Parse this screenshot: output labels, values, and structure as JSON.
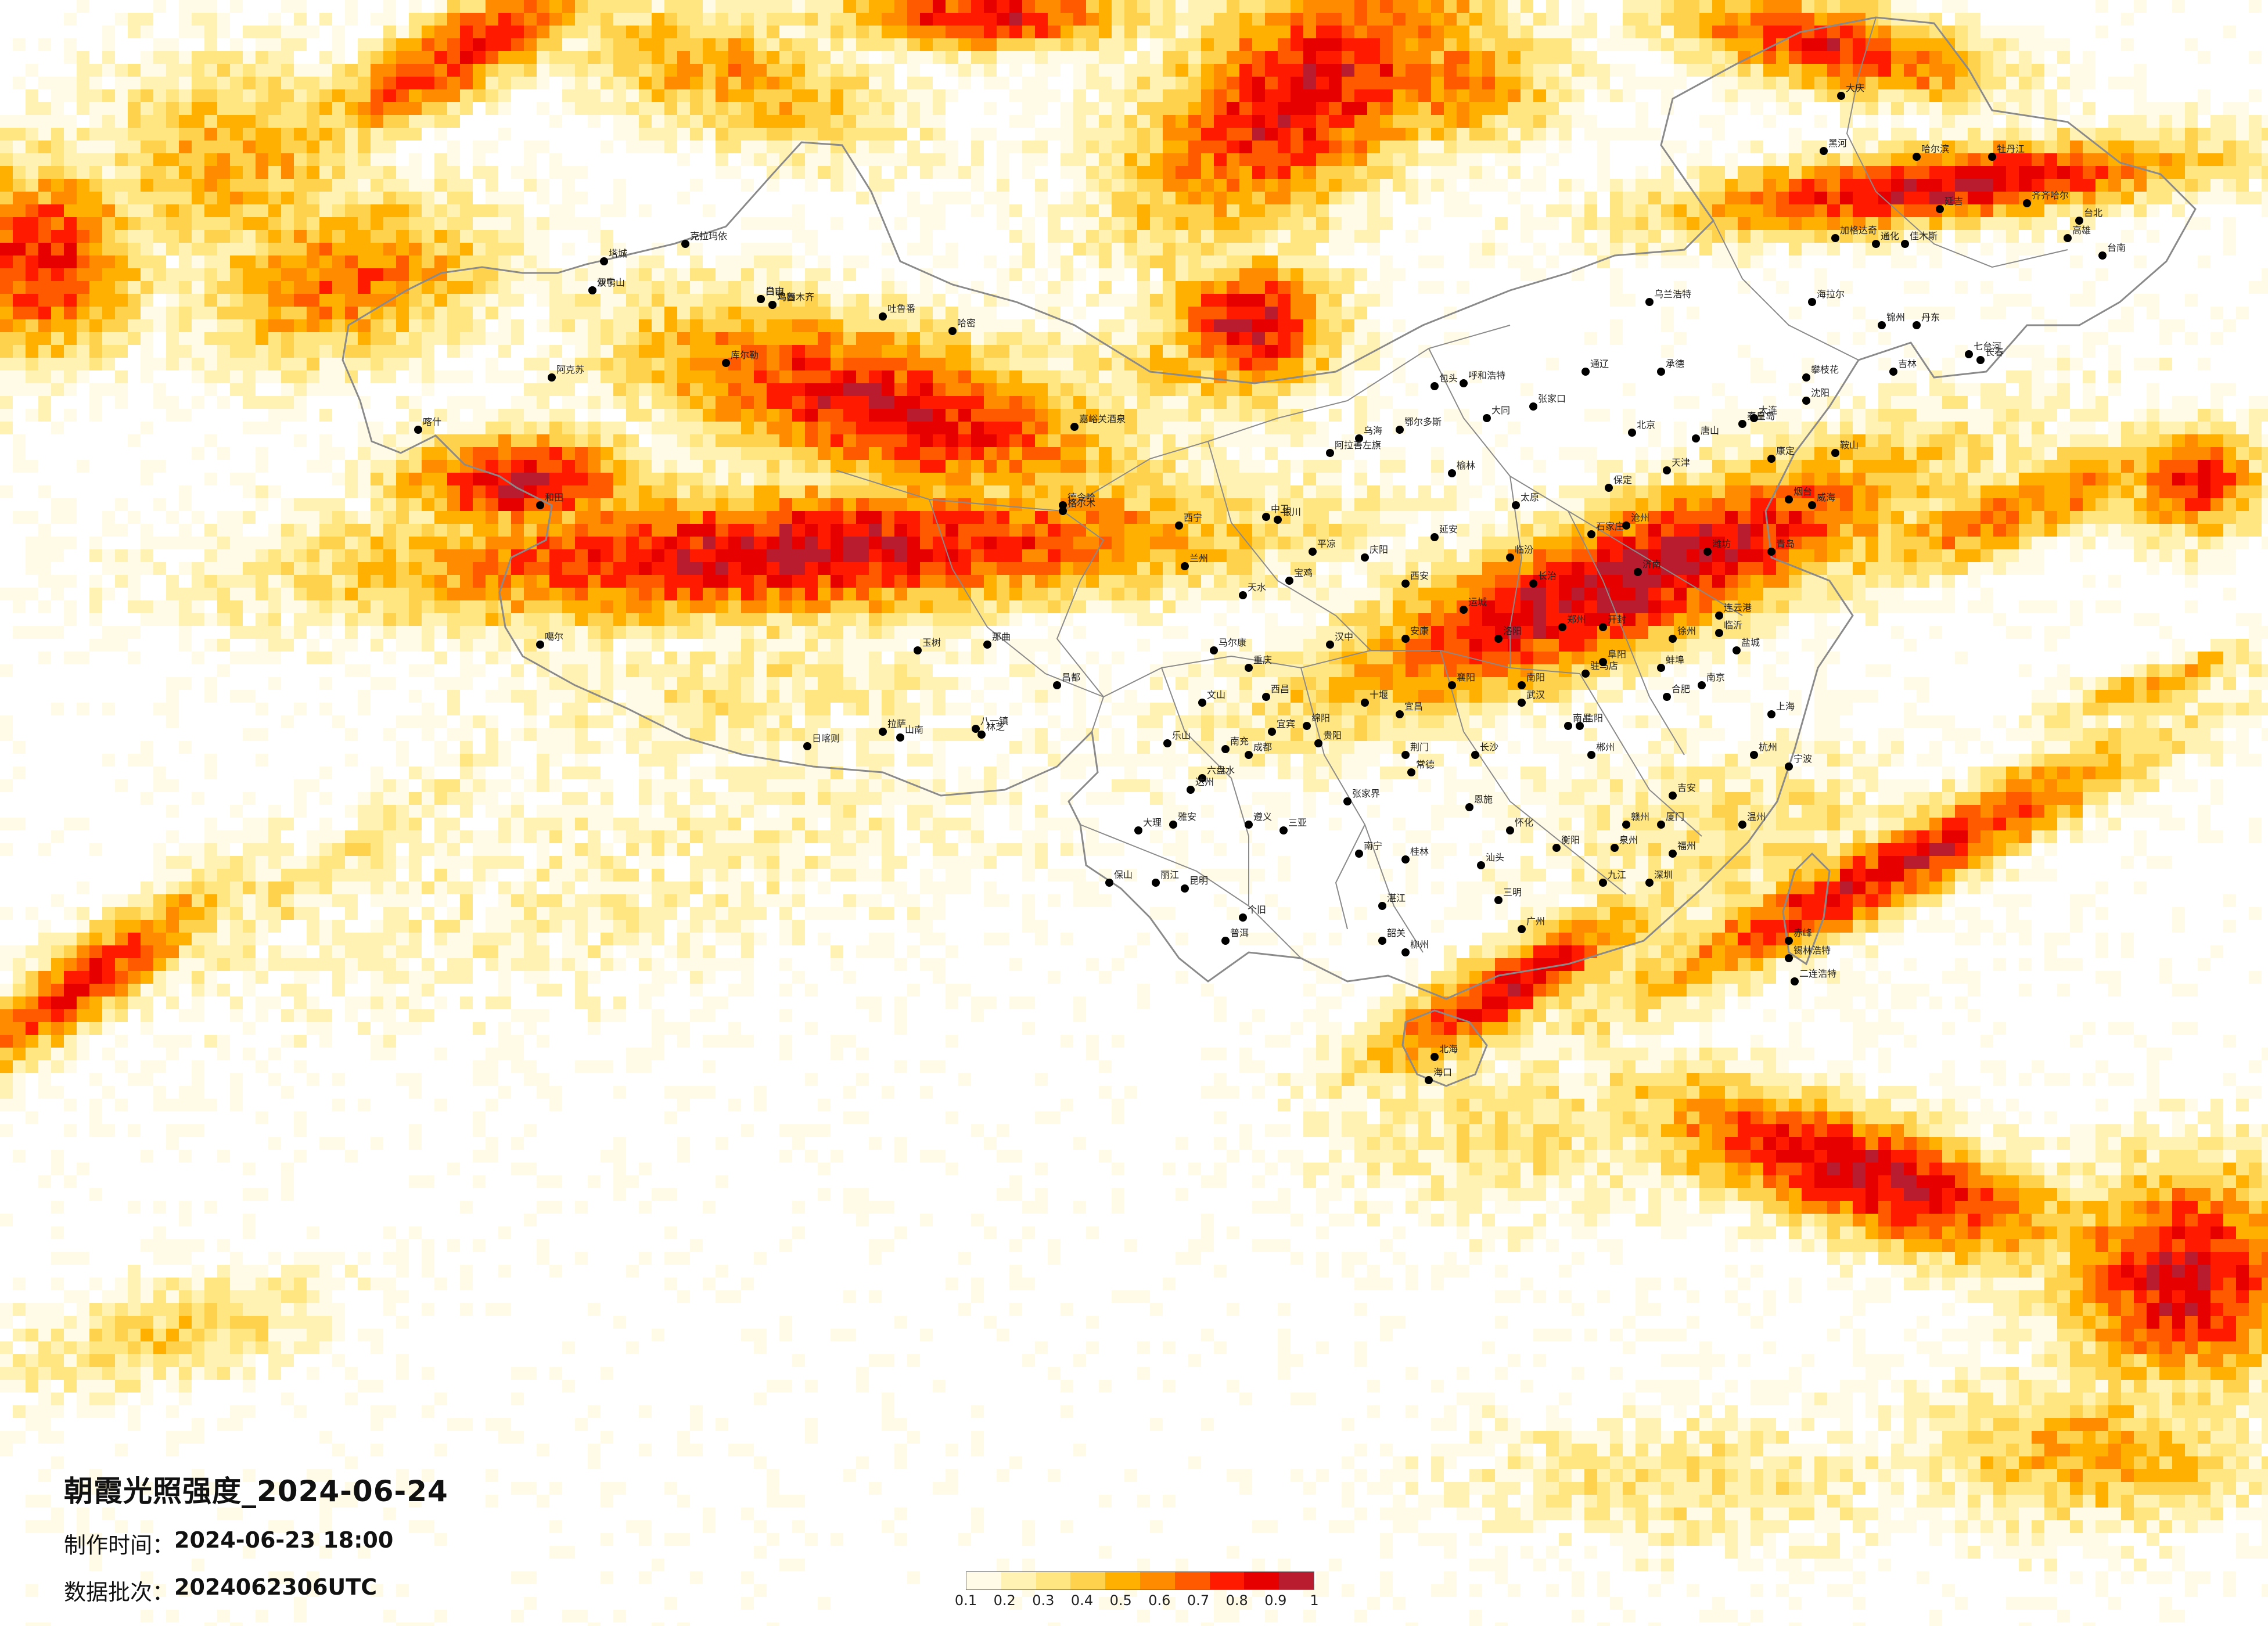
{
  "title": "朝霞光照强度_2024-06-24",
  "made_time": {
    "label": "制作时间：",
    "value": "2024-06-23 18:00"
  },
  "batch": {
    "label": "数据批次：",
    "value": "2024062306UTC"
  },
  "legend": {
    "ticks": [
      "0.1",
      "0.2",
      "0.3",
      "0.4",
      "0.5",
      "0.6",
      "0.7",
      "0.8",
      "0.9",
      "1"
    ],
    "colors": [
      "#fffbe6",
      "#fff2b3",
      "#ffe680",
      "#ffd24d",
      "#ffb000",
      "#ff8c00",
      "#ff5a00",
      "#ff1a00",
      "#e60000",
      "#b81c2e"
    ]
  },
  "colors": {
    "border": "#8a8a8a",
    "city_dot": "#000000",
    "background": "#ffffff"
  },
  "cities": [
    {
      "name": "伊宁"
    },
    {
      "name": "乌鲁木齐"
    },
    {
      "name": "昌吉"
    },
    {
      "name": "塔城"
    },
    {
      "name": "克拉玛依"
    },
    {
      "name": "阿克苏"
    },
    {
      "name": "喀什"
    },
    {
      "name": "和田"
    },
    {
      "name": "库尔勒"
    },
    {
      "name": "吐鲁番"
    },
    {
      "name": "哈密"
    },
    {
      "name": "嘉峪关酒泉"
    },
    {
      "name": "格尔木"
    },
    {
      "name": "德令哈"
    },
    {
      "name": "西宁"
    },
    {
      "name": "噶尔"
    },
    {
      "name": "日喀则"
    },
    {
      "name": "拉萨"
    },
    {
      "name": "山南"
    },
    {
      "name": "八一镇"
    },
    {
      "name": "林芝"
    },
    {
      "name": "昌都"
    },
    {
      "name": "那曲"
    },
    {
      "name": "玉树"
    },
    {
      "name": "马尔康"
    },
    {
      "name": "兰州"
    },
    {
      "name": "银川"
    },
    {
      "name": "呼和浩特"
    },
    {
      "name": "包头"
    },
    {
      "name": "鄂尔多斯"
    },
    {
      "name": "乌海"
    },
    {
      "name": "阿拉善左旗"
    },
    {
      "name": "中卫"
    },
    {
      "name": "天水"
    },
    {
      "name": "平凉"
    },
    {
      "name": "庆阳"
    },
    {
      "name": "延安"
    },
    {
      "name": "榆林"
    },
    {
      "name": "西安"
    },
    {
      "name": "宝鸡"
    },
    {
      "name": "汉中"
    },
    {
      "name": "安康"
    },
    {
      "name": "太原"
    },
    {
      "name": "大同"
    },
    {
      "name": "临汾"
    },
    {
      "name": "长治"
    },
    {
      "name": "运城"
    },
    {
      "name": "石家庄"
    },
    {
      "name": "保定"
    },
    {
      "name": "北京"
    },
    {
      "name": "天津"
    },
    {
      "name": "唐山"
    },
    {
      "name": "秦皇岛"
    },
    {
      "name": "张家口"
    },
    {
      "name": "承德"
    },
    {
      "name": "沧州"
    },
    {
      "name": "济南"
    },
    {
      "name": "青岛"
    },
    {
      "name": "烟台"
    },
    {
      "name": "威海"
    },
    {
      "name": "潍坊"
    },
    {
      "name": "临沂"
    },
    {
      "name": "郑州"
    },
    {
      "name": "洛阳"
    },
    {
      "name": "开封"
    },
    {
      "name": "南阳"
    },
    {
      "name": "信阳"
    },
    {
      "name": "驻马店"
    },
    {
      "name": "合肥"
    },
    {
      "name": "蚌埠"
    },
    {
      "name": "阜阳"
    },
    {
      "name": "南京"
    },
    {
      "name": "徐州"
    },
    {
      "name": "连云港"
    },
    {
      "name": "盐城"
    },
    {
      "name": "上海"
    },
    {
      "name": "杭州"
    },
    {
      "name": "宁波"
    },
    {
      "name": "温州"
    },
    {
      "name": "武汉"
    },
    {
      "name": "宜昌"
    },
    {
      "name": "襄阳"
    },
    {
      "name": "荆门"
    },
    {
      "name": "十堰"
    },
    {
      "name": "恩施"
    },
    {
      "name": "长沙"
    },
    {
      "name": "常德"
    },
    {
      "name": "张家界"
    },
    {
      "name": "怀化"
    },
    {
      "name": "衡阳"
    },
    {
      "name": "郴州"
    },
    {
      "name": "南昌"
    },
    {
      "name": "九江"
    },
    {
      "name": "赣州"
    },
    {
      "name": "吉安"
    },
    {
      "name": "福州"
    },
    {
      "name": "厦门"
    },
    {
      "name": "泉州"
    },
    {
      "name": "三明"
    },
    {
      "name": "广州"
    },
    {
      "name": "深圳"
    },
    {
      "name": "汕头"
    },
    {
      "name": "韶关"
    },
    {
      "name": "湛江"
    },
    {
      "name": "南宁"
    },
    {
      "name": "桂林"
    },
    {
      "name": "柳州"
    },
    {
      "name": "北海"
    },
    {
      "name": "海口"
    },
    {
      "name": "三亚"
    },
    {
      "name": "贵阳"
    },
    {
      "name": "遵义"
    },
    {
      "name": "六盘水"
    },
    {
      "name": "昆明"
    },
    {
      "name": "大理"
    },
    {
      "name": "丽江"
    },
    {
      "name": "保山"
    },
    {
      "name": "普洱"
    },
    {
      "name": "个旧"
    },
    {
      "name": "文山"
    },
    {
      "name": "成都"
    },
    {
      "name": "重庆"
    },
    {
      "name": "绵阳"
    },
    {
      "name": "南充"
    },
    {
      "name": "宜宾"
    },
    {
      "name": "乐山"
    },
    {
      "name": "达州"
    },
    {
      "name": "雅安"
    },
    {
      "name": "西昌"
    },
    {
      "name": "攀枝花"
    },
    {
      "name": "康定"
    },
    {
      "name": "沈阳"
    },
    {
      "name": "大连"
    },
    {
      "name": "鞍山"
    },
    {
      "name": "锦州"
    },
    {
      "name": "丹东"
    },
    {
      "name": "长春"
    },
    {
      "name": "吉林"
    },
    {
      "name": "延吉"
    },
    {
      "name": "通化"
    },
    {
      "name": "哈尔滨"
    },
    {
      "name": "齐齐哈尔"
    },
    {
      "name": "牡丹江"
    },
    {
      "name": "佳木斯"
    },
    {
      "name": "大庆"
    },
    {
      "name": "黑河"
    },
    {
      "name": "加格达奇"
    },
    {
      "name": "海拉尔"
    },
    {
      "name": "乌兰浩特"
    },
    {
      "name": "通辽"
    },
    {
      "name": "赤峰"
    },
    {
      "name": "锡林浩特"
    },
    {
      "name": "二连浩特"
    },
    {
      "name": "台北"
    },
    {
      "name": "台南"
    },
    {
      "name": "高雄"
    },
    {
      "name": "七台河"
    },
    {
      "name": "双鸭山"
    },
    {
      "name": "鸡西"
    },
    {
      "name": "白山"
    }
  ]
}
